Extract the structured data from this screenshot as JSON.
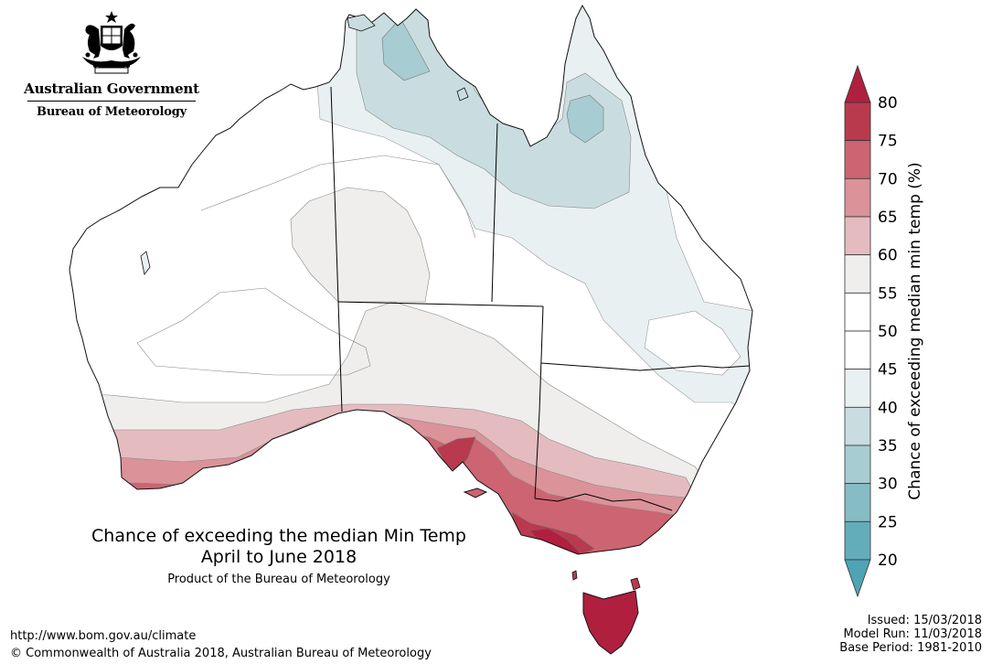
{
  "logo": {
    "line1": "Australian Government",
    "line2": "Bureau of Meteorology"
  },
  "title": {
    "line1": "Chance of exceeding the median Min Temp",
    "line2": "April to June 2018",
    "line3": "Product of the Bureau of Meteorology"
  },
  "footer": {
    "url": "http://www.bom.gov.au/climate",
    "copyright": "© Commonwealth of Australia 2018, Australian Bureau of Meteorology"
  },
  "issue_info": {
    "issued": "Issued: 15/03/2018",
    "model_run": "Model Run: 11/03/2018",
    "base_period": "Base Period: 1981-2010"
  },
  "legend": {
    "label": "Chance of exceeding median min temp (%)",
    "ticks": [
      "80",
      "75",
      "70",
      "65",
      "60",
      "55",
      "50",
      "45",
      "40",
      "35",
      "30",
      "25",
      "20"
    ],
    "bins": [
      {
        "range": "75-80",
        "color": "#b93a4d"
      },
      {
        "range": "70-75",
        "color": "#cd6471"
      },
      {
        "range": "65-70",
        "color": "#db9299"
      },
      {
        "range": "60-65",
        "color": "#e4bcbf"
      },
      {
        "range": "55-60",
        "color": "#efeeec"
      },
      {
        "range": "50-55",
        "color": "#ffffff"
      },
      {
        "range": "45-50",
        "color": "#ffffff"
      },
      {
        "range": "40-45",
        "color": "#e9f0f2"
      },
      {
        "range": "35-40",
        "color": "#c9dde0"
      },
      {
        "range": "30-35",
        "color": "#a7ccd1"
      },
      {
        "range": "25-30",
        "color": "#86bcc4"
      },
      {
        "range": "20-25",
        "color": "#63acba"
      }
    ],
    "top_arrow_color": "#b0203e",
    "bottom_arrow_color": "#4ea3b5"
  }
}
